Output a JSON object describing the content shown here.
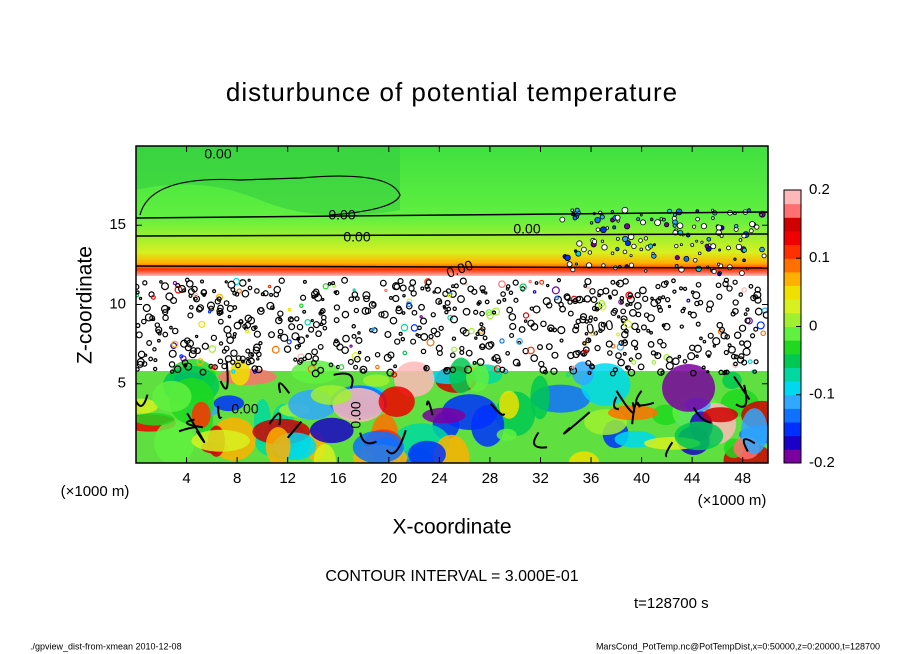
{
  "chart_data": {
    "type": "contour",
    "title": "disturbunce of potential temperature",
    "xlabel": "X-coordinate",
    "ylabel": "Z-coordinate",
    "xunit": "(×1000 m)",
    "yunit": "(×1000 m)",
    "xlim": [
      0,
      50
    ],
    "xticks": [
      4,
      8,
      12,
      16,
      20,
      24,
      28,
      32,
      36,
      40,
      44,
      48
    ],
    "ylim": [
      0,
      20
    ],
    "yticks": [
      5,
      10,
      15
    ],
    "colorbar": {
      "lim": [
        -0.2,
        0.2
      ],
      "ticks": [
        -0.2,
        -0.1,
        0,
        0.1,
        0.2
      ],
      "colors": [
        "#7a00a0",
        "#1a00c8",
        "#0030ff",
        "#1070ff",
        "#30a8ff",
        "#00d8f0",
        "#00d8a0",
        "#00c850",
        "#20d820",
        "#60f040",
        "#a0f030",
        "#d8f020",
        "#f0e000",
        "#ffb000",
        "#ff7000",
        "#ff3000",
        "#f00000",
        "#d00000",
        "#ff7070",
        "#ffb8b8"
      ]
    },
    "contour_labels": [
      "0.00",
      "0.00",
      "0.00",
      "0.00",
      "0.00",
      "0.00",
      "0.00",
      "0.00"
    ],
    "annotations": [
      "CONTOUR INTERVAL = 3.000E-01",
      "t=128700 s"
    ],
    "footer_left": "./gpview_dist-from-xmean  2010-12-08",
    "footer_right": "MarsCond_PotTemp.nc@PotTempDist,x=0:50000,z=0:20000,t=128700"
  }
}
